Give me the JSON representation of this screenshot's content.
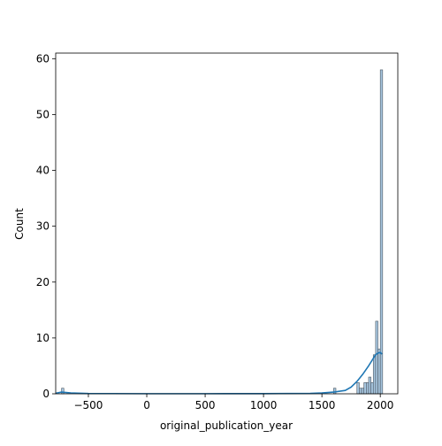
{
  "chart_data": {
    "type": "histogram",
    "title": "",
    "xlabel": "original_publication_year",
    "ylabel": "Count",
    "xlim": [
      -780,
      2150
    ],
    "ylim": [
      0,
      61
    ],
    "xticks": [
      -500,
      0,
      500,
      1000,
      1500,
      2000
    ],
    "xtick_labels": [
      "−500",
      "0",
      "500",
      "1000",
      "1500",
      "2000"
    ],
    "yticks": [
      0,
      10,
      20,
      30,
      40,
      50,
      60
    ],
    "ytick_labels": [
      "0",
      "10",
      "20",
      "30",
      "40",
      "50",
      "60"
    ],
    "bin_width": 20,
    "bars": [
      {
        "x": -730,
        "count": 1
      },
      {
        "x": 1600,
        "count": 1
      },
      {
        "x": 1800,
        "count": 2
      },
      {
        "x": 1820,
        "count": 1
      },
      {
        "x": 1840,
        "count": 1
      },
      {
        "x": 1860,
        "count": 2
      },
      {
        "x": 1880,
        "count": 2
      },
      {
        "x": 1900,
        "count": 3
      },
      {
        "x": 1920,
        "count": 2
      },
      {
        "x": 1940,
        "count": 7
      },
      {
        "x": 1960,
        "count": 13
      },
      {
        "x": 1980,
        "count": 8
      },
      {
        "x": 2000,
        "count": 58
      }
    ],
    "kde": {
      "x": [
        -780,
        -730,
        -650,
        -500,
        0,
        500,
        1000,
        1400,
        1500,
        1600,
        1700,
        1750,
        1800,
        1850,
        1900,
        1930,
        1960,
        1980,
        2000,
        2015
      ],
      "y": [
        0.1,
        0.3,
        0.15,
        0.05,
        0.02,
        0.02,
        0.03,
        0.08,
        0.15,
        0.3,
        0.6,
        1.2,
        2.2,
        3.5,
        5.0,
        6.0,
        7.0,
        7.3,
        7.4,
        7.1
      ]
    },
    "grid": false,
    "legend": "none",
    "colors": {
      "bar_fill": "#a6c5de",
      "bar_edge": "#4a5560",
      "kde_line": "#1f77b4"
    }
  }
}
